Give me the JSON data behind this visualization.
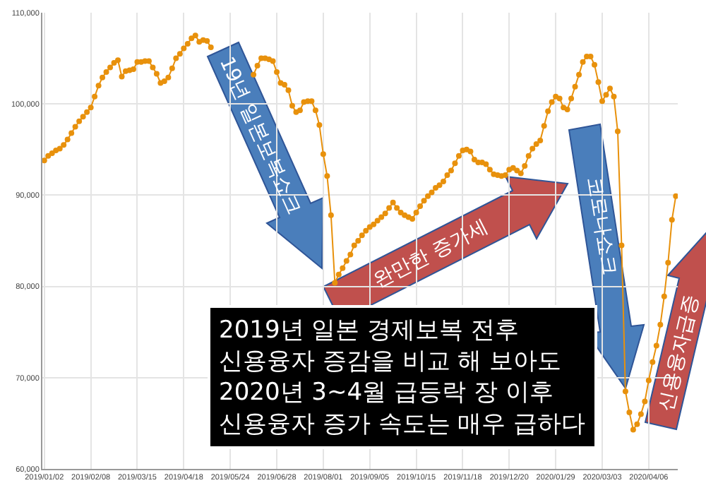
{
  "chart_data": {
    "type": "line",
    "categories": [
      "2019/01/02",
      null,
      null,
      null,
      null,
      null,
      null,
      null,
      null,
      null,
      null,
      null,
      "2019/02/08",
      null,
      null,
      null,
      null,
      null,
      null,
      null,
      null,
      null,
      null,
      null,
      "2019/03/15",
      null,
      null,
      null,
      null,
      null,
      null,
      null,
      null,
      null,
      null,
      null,
      "2019/04/18",
      null,
      null,
      null,
      null,
      null,
      null,
      null,
      null,
      null,
      null,
      null,
      "2019/05/24",
      null,
      null,
      null,
      null,
      null,
      null,
      null,
      null,
      null,
      null,
      null,
      "2019/06/28",
      null,
      null,
      null,
      null,
      null,
      null,
      null,
      null,
      null,
      null,
      null,
      "2019/08/01",
      null,
      null,
      null,
      null,
      null,
      null,
      null,
      null,
      null,
      null,
      null,
      "2019/09/05",
      null,
      null,
      null,
      null,
      null,
      null,
      null,
      null,
      null,
      null,
      null,
      "2019/10/15",
      null,
      null,
      null,
      null,
      null,
      null,
      null,
      null,
      null,
      null,
      null,
      "2019/11/18",
      null,
      null,
      null,
      null,
      null,
      null,
      null,
      null,
      null,
      null,
      null,
      "2019/12/20",
      null,
      null,
      null,
      null,
      null,
      null,
      null,
      null,
      null,
      null,
      null,
      "2020/01/29",
      null,
      null,
      null,
      null,
      null,
      null,
      null,
      null,
      null,
      null,
      null,
      "2020/03/03",
      null,
      null,
      null,
      null,
      null,
      null,
      null,
      null,
      null,
      null,
      null,
      "2020/04/06",
      null,
      null,
      null,
      null,
      null,
      null,
      null
    ],
    "series": [
      {
        "color": "#e8910c",
        "values": [
          93800,
          94300,
          94600,
          94900,
          95100,
          95500,
          96100,
          96800,
          97500,
          98100,
          98600,
          99100,
          99600,
          100800,
          102000,
          102900,
          103500,
          104000,
          104500,
          104800,
          103000,
          103600,
          103700,
          103800,
          104600,
          104600,
          104700,
          104700,
          104000,
          103300,
          102300,
          102500,
          102900,
          103900,
          105000,
          105500,
          106100,
          106600,
          107200,
          107500,
          106800,
          107000,
          106900,
          106200,
          null,
          null,
          null,
          null,
          null,
          null,
          null,
          null,
          null,
          null,
          103200,
          104200,
          105000,
          105000,
          104900,
          104700,
          103500,
          102300,
          102100,
          101500,
          99800,
          99100,
          99300,
          100200,
          100300,
          100300,
          99300,
          97700,
          94500,
          92100,
          87800,
          80400,
          81300,
          82000,
          82800,
          83500,
          84500,
          85000,
          85600,
          86100,
          86500,
          86800,
          87200,
          87600,
          88000,
          88600,
          89200,
          88600,
          88100,
          87800,
          87600,
          87400,
          88100,
          88800,
          89400,
          89900,
          90300,
          90800,
          91100,
          91500,
          92200,
          92700,
          93500,
          94300,
          94900,
          95000,
          94800,
          93900,
          93600,
          93600,
          93400,
          92800,
          92300,
          92200,
          92100,
          92200,
          92800,
          93000,
          92700,
          92400,
          93200,
          94300,
          95100,
          95600,
          96000,
          97600,
          99200,
          100200,
          100800,
          100600,
          99600,
          99400,
          100600,
          101900,
          103200,
          104600,
          105200,
          105200,
          104300,
          102400,
          100300,
          101000,
          101700,
          100800,
          97000,
          84500,
          68500,
          66200,
          64300,
          64900,
          66000,
          67400,
          69700,
          71700,
          73500,
          75800,
          78900,
          82600,
          87300,
          89900
        ]
      }
    ],
    "ylim": [
      60000,
      110000
    ],
    "yticks": [
      {
        "value": 60000,
        "label": "60,000"
      },
      {
        "value": 70000,
        "label": "70,000"
      },
      {
        "value": 80000,
        "label": "80,000"
      },
      {
        "value": 90000,
        "label": "90,000"
      },
      {
        "value": 100000,
        "label": "100,000"
      },
      {
        "value": 110000,
        "label": "110,000"
      }
    ],
    "grid": true,
    "marker": "circle",
    "line_style": "solid",
    "annotations": [
      "19년 일본보복쇼크",
      "완만한 증가세",
      "코로나쇼크",
      "신용융자급증",
      "2019년 일본 경제보복 전후\n신용융자 증감을 비교 해 보아도\n2020년 3~4월 급등락 장 이후\n신용융자 증가 속도는 매우 급하다"
    ]
  }
}
